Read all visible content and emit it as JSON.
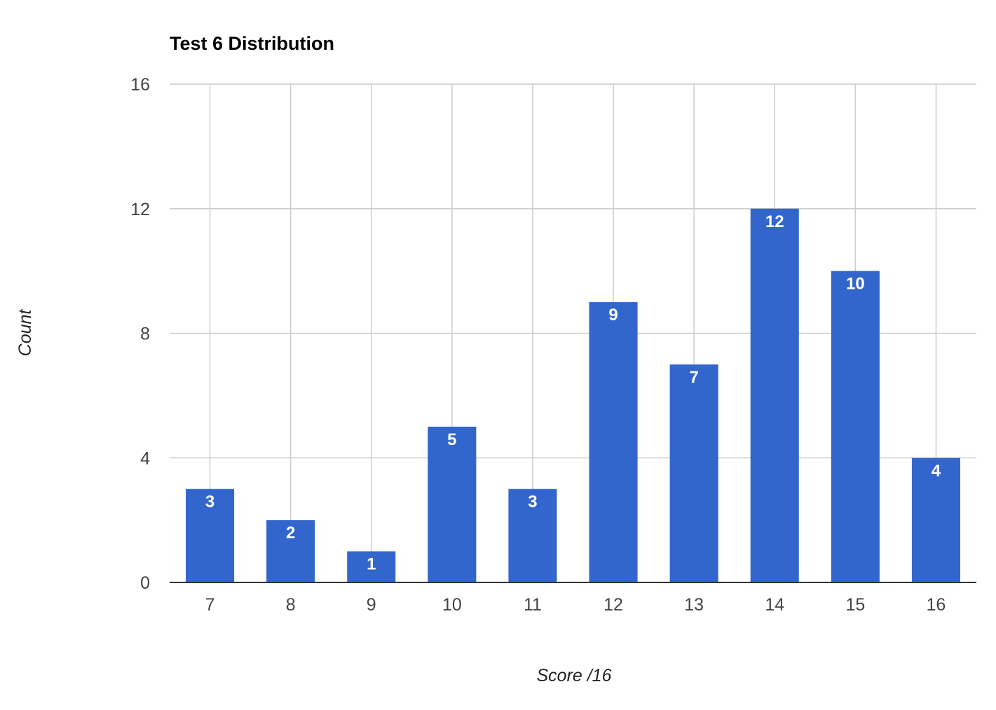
{
  "chart_data": {
    "type": "bar",
    "title": "Test 6 Distribution",
    "xlabel": "Score /16",
    "ylabel": "Count",
    "categories": [
      "7",
      "8",
      "9",
      "10",
      "11",
      "12",
      "13",
      "14",
      "15",
      "16"
    ],
    "values": [
      3,
      2,
      1,
      5,
      3,
      9,
      7,
      12,
      10,
      4
    ],
    "ylim": [
      0,
      16
    ],
    "yticks": [
      "0",
      "4",
      "8",
      "12",
      "16"
    ],
    "grid": true,
    "data_labels": true,
    "colors": {
      "bar": "#3366cc",
      "grid": "#cccccc",
      "baseline": "#333333",
      "data_label": "#ffffff"
    }
  }
}
